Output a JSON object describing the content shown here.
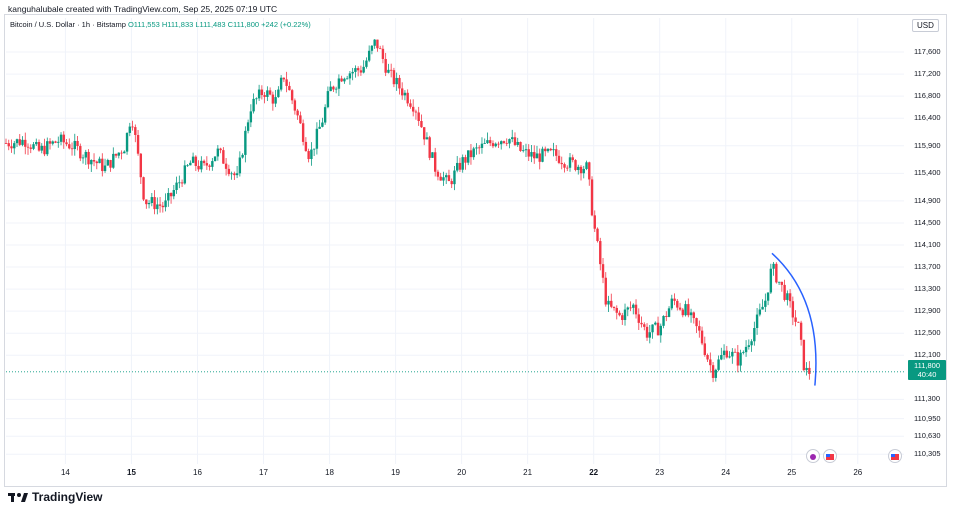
{
  "caption": "kanguhalubale created with TradingView.com, Sep 25, 2025 07:19 UTC",
  "legend": {
    "symbol": "Bitcoin / U.S. Dollar · 1h · Bitstamp",
    "ohlc": "O111,553  H111,833  L111,483  C111,800  +242 (+0.22%)"
  },
  "currency": "USD",
  "price_badge": {
    "price": "111,800",
    "countdown": "40:40"
  },
  "branding": "TradingView",
  "colors": {
    "up": "#089981",
    "down": "#f23645",
    "annotation": "#2962ff",
    "grid": "#f0f3fa"
  },
  "icons": [
    "tradingview-logo-icon",
    "event-crypto-icon",
    "us-flag-icon"
  ],
  "chart_data": {
    "type": "candlestick",
    "title": "Bitcoin / U.S. Dollar · 1h · Bitstamp",
    "y_axis_side": "right",
    "y_ticks": [
      "117,600",
      "117,200",
      "116,800",
      "116,400",
      "115,900",
      "115,400",
      "114,900",
      "114,500",
      "114,100",
      "113,700",
      "113,300",
      "112,900",
      "112,500",
      "112,100",
      "111,300",
      "110,950",
      "110,630",
      "110,305"
    ],
    "x_ticks": [
      {
        "label": "14",
        "bold": false
      },
      {
        "label": "15",
        "bold": true
      },
      {
        "label": "16",
        "bold": false
      },
      {
        "label": "17",
        "bold": false
      },
      {
        "label": "18",
        "bold": false
      },
      {
        "label": "19",
        "bold": false
      },
      {
        "label": "20",
        "bold": false
      },
      {
        "label": "21",
        "bold": false
      },
      {
        "label": "22",
        "bold": true
      },
      {
        "label": "23",
        "bold": false
      },
      {
        "label": "24",
        "bold": false
      },
      {
        "label": "25",
        "bold": false
      },
      {
        "label": "26",
        "bold": false
      }
    ],
    "x_domain_days": [
      13.1,
      26.7
    ],
    "y_range": [
      110200,
      118000
    ],
    "last_price": 111800,
    "close_path": [
      [
        13.1,
        115950
      ],
      [
        13.4,
        116000
      ],
      [
        13.6,
        115800
      ],
      [
        13.9,
        116000
      ],
      [
        14.1,
        115900
      ],
      [
        14.4,
        115650
      ],
      [
        14.6,
        115500
      ],
      [
        14.9,
        115900
      ],
      [
        15.0,
        116500
      ],
      [
        15.2,
        114900
      ],
      [
        15.5,
        114800
      ],
      [
        15.7,
        115200
      ],
      [
        15.9,
        115600
      ],
      [
        16.1,
        115500
      ],
      [
        16.3,
        115800
      ],
      [
        16.6,
        115300
      ],
      [
        16.8,
        116600
      ],
      [
        17.0,
        116900
      ],
      [
        17.2,
        116700
      ],
      [
        17.3,
        117200
      ],
      [
        17.5,
        116500
      ],
      [
        17.7,
        115700
      ],
      [
        17.9,
        116400
      ],
      [
        18.0,
        116900
      ],
      [
        18.2,
        117200
      ],
      [
        18.5,
        117300
      ],
      [
        18.7,
        117800
      ],
      [
        18.9,
        117200
      ],
      [
        19.1,
        116900
      ],
      [
        19.3,
        116600
      ],
      [
        19.6,
        115500
      ],
      [
        19.8,
        115200
      ],
      [
        20.0,
        115600
      ],
      [
        20.2,
        115800
      ],
      [
        20.5,
        116000
      ],
      [
        20.7,
        116050
      ],
      [
        20.9,
        115800
      ],
      [
        21.1,
        115700
      ],
      [
        21.4,
        115750
      ],
      [
        21.6,
        115600
      ],
      [
        21.9,
        115500
      ],
      [
        22.0,
        114500
      ],
      [
        22.2,
        113000
      ],
      [
        22.4,
        112800
      ],
      [
        22.6,
        113000
      ],
      [
        22.8,
        112500
      ],
      [
        23.0,
        112600
      ],
      [
        23.2,
        113100
      ],
      [
        23.4,
        112900
      ],
      [
        23.6,
        112500
      ],
      [
        23.8,
        111800
      ],
      [
        24.0,
        112200
      ],
      [
        24.2,
        112000
      ],
      [
        24.4,
        112500
      ],
      [
        24.6,
        113100
      ],
      [
        24.7,
        113700
      ],
      [
        24.9,
        113200
      ],
      [
        25.1,
        112600
      ],
      [
        25.2,
        111800
      ],
      [
        25.3,
        111800
      ]
    ],
    "annotation": {
      "type": "arc",
      "from": [
        24.7,
        113950
      ],
      "to": [
        25.35,
        111550
      ]
    }
  }
}
